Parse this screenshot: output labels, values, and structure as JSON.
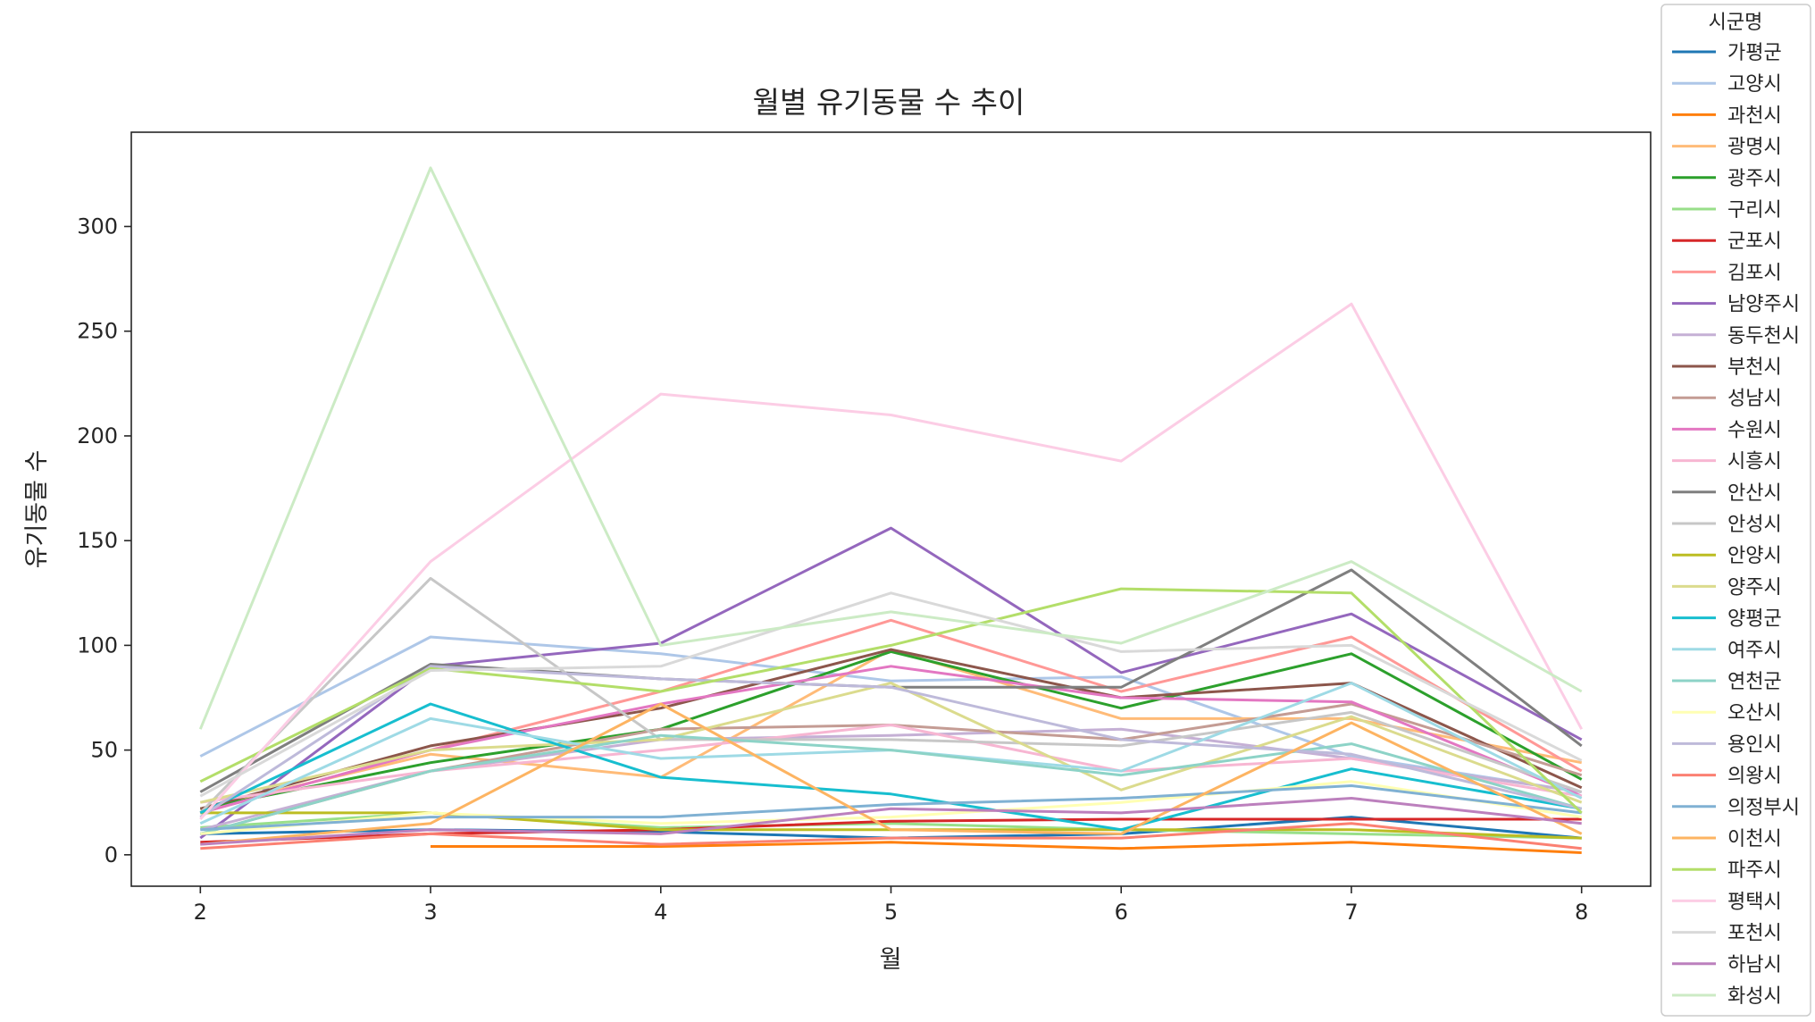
{
  "chart_data": {
    "type": "line",
    "title": "월별 유기동물 수 추이",
    "xlabel": "월",
    "ylabel": "유기동물 수",
    "x": [
      2,
      3,
      4,
      5,
      6,
      7,
      8
    ],
    "xlim": [
      1.7,
      8.3
    ],
    "ylim": [
      -15,
      345
    ],
    "xticks": [
      "2",
      "3",
      "4",
      "5",
      "6",
      "7",
      "8"
    ],
    "yticks": [
      "0",
      "50",
      "100",
      "150",
      "200",
      "250",
      "300"
    ],
    "grid": false,
    "legend": {
      "title": "시군명",
      "placement": "outside-right"
    },
    "series": [
      {
        "name": "가평군",
        "color": "#1f77b4",
        "values": [
          10,
          12,
          11,
          8,
          10,
          18,
          8
        ]
      },
      {
        "name": "고양시",
        "color": "#aec7e8",
        "values": [
          47,
          104,
          96,
          83,
          85,
          47,
          30
        ]
      },
      {
        "name": "과천시",
        "color": "#ff7f0e",
        "values": [
          null,
          4,
          4,
          6,
          3,
          6,
          1
        ]
      },
      {
        "name": "광명시",
        "color": "#ffbb78",
        "values": [
          22,
          48,
          37,
          98,
          65,
          65,
          44
        ]
      },
      {
        "name": "광주시",
        "color": "#2ca02c",
        "values": [
          22,
          44,
          60,
          97,
          70,
          96,
          36
        ]
      },
      {
        "name": "구리시",
        "color": "#98df8a",
        "values": [
          13,
          20,
          13,
          15,
          12,
          10,
          8
        ]
      },
      {
        "name": "군포시",
        "color": "#d62728",
        "values": [
          6,
          10,
          12,
          16,
          17,
          17,
          17
        ]
      },
      {
        "name": "김포시",
        "color": "#ff9896",
        "values": [
          20,
          50,
          78,
          112,
          78,
          104,
          40
        ]
      },
      {
        "name": "남양주시",
        "color": "#9467bd",
        "values": [
          8,
          90,
          101,
          156,
          87,
          115,
          55
        ]
      },
      {
        "name": "동두천시",
        "color": "#c5b0d5",
        "values": [
          12,
          40,
          55,
          57,
          60,
          46,
          30
        ]
      },
      {
        "name": "부천시",
        "color": "#8c564b",
        "values": [
          22,
          52,
          70,
          98,
          75,
          82,
          32
        ]
      },
      {
        "name": "성남시",
        "color": "#c49c94",
        "values": [
          10,
          40,
          60,
          62,
          55,
          72,
          38
        ]
      },
      {
        "name": "수원시",
        "color": "#e377c2",
        "values": [
          20,
          50,
          72,
          90,
          75,
          73,
          28
        ]
      },
      {
        "name": "시흥시",
        "color": "#f7b6d2",
        "values": [
          25,
          40,
          50,
          62,
          40,
          46,
          28
        ]
      },
      {
        "name": "안산시",
        "color": "#7f7f7f",
        "values": [
          30,
          91,
          84,
          80,
          80,
          136,
          52
        ]
      },
      {
        "name": "안성시",
        "color": "#c7c7c7",
        "values": [
          20,
          132,
          55,
          55,
          52,
          68,
          30
        ]
      },
      {
        "name": "안양시",
        "color": "#bcbd22",
        "values": [
          20,
          20,
          12,
          12,
          12,
          12,
          8
        ]
      },
      {
        "name": "양주시",
        "color": "#dbdb8d",
        "values": [
          25,
          50,
          55,
          82,
          31,
          66,
          25
        ]
      },
      {
        "name": "양평군",
        "color": "#17becf",
        "values": [
          20,
          72,
          37,
          29,
          12,
          41,
          22
        ]
      },
      {
        "name": "여주시",
        "color": "#9edae5",
        "values": [
          15,
          65,
          46,
          50,
          40,
          82,
          27
        ]
      },
      {
        "name": "연천군",
        "color": "#8dd3c7",
        "values": [
          10,
          40,
          57,
          50,
          38,
          53,
          22
        ]
      },
      {
        "name": "오산시",
        "color": "#ffffb3",
        "values": [
          10,
          20,
          15,
          18,
          25,
          35,
          18
        ]
      },
      {
        "name": "용인시",
        "color": "#bebada",
        "values": [
          18,
          90,
          84,
          80,
          55,
          48,
          22
        ]
      },
      {
        "name": "의왕시",
        "color": "#fb8072",
        "values": [
          3,
          10,
          5,
          8,
          8,
          15,
          3
        ]
      },
      {
        "name": "의정부시",
        "color": "#80b1d3",
        "values": [
          12,
          18,
          18,
          24,
          27,
          33,
          20
        ]
      },
      {
        "name": "이천시",
        "color": "#fdb462",
        "values": [
          5,
          15,
          72,
          12,
          10,
          63,
          10
        ]
      },
      {
        "name": "파주시",
        "color": "#b3de69",
        "values": [
          35,
          89,
          78,
          100,
          127,
          125,
          20
        ]
      },
      {
        "name": "평택시",
        "color": "#fccde5",
        "values": [
          17,
          140,
          220,
          210,
          188,
          263,
          60
        ]
      },
      {
        "name": "포천시",
        "color": "#d9d9d9",
        "values": [
          28,
          88,
          90,
          125,
          97,
          100,
          45
        ]
      },
      {
        "name": "하남시",
        "color": "#bc80bd",
        "values": [
          5,
          12,
          10,
          22,
          20,
          27,
          15
        ]
      },
      {
        "name": "화성시",
        "color": "#ccebc5",
        "values": [
          60,
          328,
          100,
          116,
          101,
          140,
          78
        ]
      }
    ]
  }
}
